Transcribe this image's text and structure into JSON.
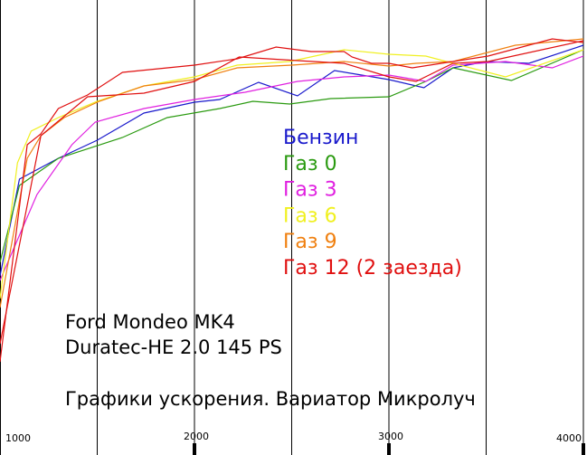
{
  "chart_data": {
    "type": "line",
    "title": [
      "Ford Mondeo MK4",
      "Duratec-HE 2.0 145 PS"
    ],
    "subtitle": "Графики ускорения. Вариатор Микролуч",
    "xlim": [
      1000,
      4000
    ],
    "ylim": [
      0,
      503
    ],
    "xticks": [
      1000,
      2000,
      3000,
      4000
    ],
    "xminor": [
      1500,
      2500,
      3500
    ],
    "grid": true,
    "series": [
      {
        "name": "Бензин",
        "color": "#1a1acc",
        "x": [
          1000,
          1100,
          1300,
          1500,
          1740,
          2000,
          2130,
          2330,
          2530,
          2720,
          3000,
          3180,
          3330,
          3500,
          3720,
          4000
        ],
        "values": [
          198,
          305,
          328,
          348,
          378,
          390,
          393,
          412,
          397,
          425,
          415,
          406,
          428,
          435,
          433,
          453
        ]
      },
      {
        "name": "Газ 0",
        "color": "#2a9a10",
        "x": [
          1000,
          1100,
          1300,
          1630,
          1860,
          2130,
          2300,
          2490,
          2700,
          3000,
          3190,
          3330,
          3630,
          4000
        ],
        "values": [
          213,
          298,
          328,
          351,
          373,
          383,
          391,
          388,
          394,
          396,
          413,
          428,
          414,
          448
        ]
      },
      {
        "name": "Газ 3",
        "color": "#e020e0",
        "x": [
          1000,
          1190,
          1370,
          1490,
          1740,
          2000,
          2260,
          2530,
          2770,
          3000,
          3190,
          3330,
          3600,
          3840,
          4000
        ],
        "values": [
          193,
          288,
          343,
          368,
          383,
          393,
          401,
          413,
          418,
          420,
          413,
          431,
          435,
          428,
          441
        ]
      },
      {
        "name": "Газ 6",
        "color": "#f0f020",
        "x": [
          1000,
          1090,
          1160,
          1300,
          1500,
          1740,
          2000,
          2220,
          2490,
          2770,
          3000,
          3190,
          3330,
          3600,
          4000
        ],
        "values": [
          173,
          323,
          358,
          373,
          391,
          408,
          418,
          431,
          435,
          448,
          443,
          441,
          433,
          418,
          448
        ]
      },
      {
        "name": "Газ 9",
        "color": "#f08010",
        "x": [
          1000,
          1140,
          1210,
          1330,
          1510,
          1740,
          2000,
          2220,
          2500,
          2770,
          3000,
          3140,
          3330,
          3650,
          4000
        ],
        "values": [
          163,
          328,
          353,
          373,
          391,
          408,
          415,
          428,
          431,
          435,
          430,
          433,
          435,
          453,
          460
        ]
      },
      {
        "name": "Газ 12 (2 заезда)",
        "color": "#e01010",
        "x": [
          1000,
          1140,
          1210,
          1300,
          1450,
          1630,
          2000,
          2220,
          2420,
          2600,
          2770,
          2810,
          2910,
          3000,
          3120,
          3330,
          3510,
          3840,
          4000
        ],
        "values": [
          103,
          343,
          355,
          383,
          398,
          423,
          431,
          438,
          451,
          446,
          446,
          440,
          433,
          433,
          428,
          435,
          441,
          460,
          456
        ]
      },
      {
        "color": "#e01010",
        "x": [
          1000,
          1210,
          1450,
          1740,
          2000,
          2230,
          2530,
          2770,
          3000,
          3140,
          3330,
          3510,
          4000
        ],
        "values": [
          123,
          353,
          396,
          400,
          413,
          440,
          436,
          433,
          418,
          413,
          433,
          435,
          458
        ]
      }
    ]
  }
}
